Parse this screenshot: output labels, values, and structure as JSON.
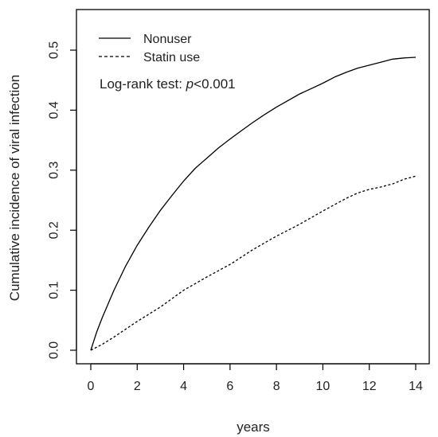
{
  "chart_data": {
    "type": "line",
    "title": "",
    "xlabel": "years",
    "ylabel": "Cumulative incidence of viral infection",
    "xlim": [
      0,
      14
    ],
    "ylim": [
      0,
      0.5
    ],
    "x_ticks": [
      "0",
      "2",
      "4",
      "6",
      "8",
      "10",
      "12",
      "14"
    ],
    "y_ticks": [
      "0.0",
      "0.1",
      "0.2",
      "0.3",
      "0.4",
      "0.5"
    ],
    "grid": false,
    "legend_position": "top-left",
    "annotation": {
      "prefix": "Log-rank test: ",
      "italic": "p",
      "suffix": "<0.001"
    },
    "series": [
      {
        "name": "Nonuser",
        "style": "solid",
        "color": "#000000",
        "x": [
          0,
          0.25,
          0.5,
          1,
          1.5,
          2,
          2.5,
          3,
          3.5,
          4,
          4.5,
          5,
          5.5,
          6,
          6.5,
          7,
          7.5,
          8,
          8.5,
          9,
          9.5,
          10,
          10.5,
          11,
          11.5,
          12,
          12.5,
          13,
          13.5,
          14
        ],
        "values": [
          0,
          0.03,
          0.055,
          0.1,
          0.14,
          0.175,
          0.205,
          0.233,
          0.258,
          0.282,
          0.303,
          0.32,
          0.337,
          0.352,
          0.366,
          0.38,
          0.393,
          0.405,
          0.416,
          0.427,
          0.436,
          0.445,
          0.455,
          0.463,
          0.47,
          0.475,
          0.48,
          0.485,
          0.487,
          0.488
        ]
      },
      {
        "name": "Statin use",
        "style": "dashed",
        "color": "#000000",
        "x": [
          0,
          0.5,
          1,
          1.5,
          2,
          3,
          4,
          5,
          6,
          7,
          8,
          9,
          10,
          11,
          11.5,
          12,
          12.5,
          13,
          13.5,
          14
        ],
        "values": [
          0,
          0.01,
          0.022,
          0.035,
          0.048,
          0.072,
          0.1,
          0.122,
          0.143,
          0.168,
          0.19,
          0.21,
          0.232,
          0.253,
          0.262,
          0.268,
          0.272,
          0.277,
          0.285,
          0.29
        ]
      }
    ]
  }
}
